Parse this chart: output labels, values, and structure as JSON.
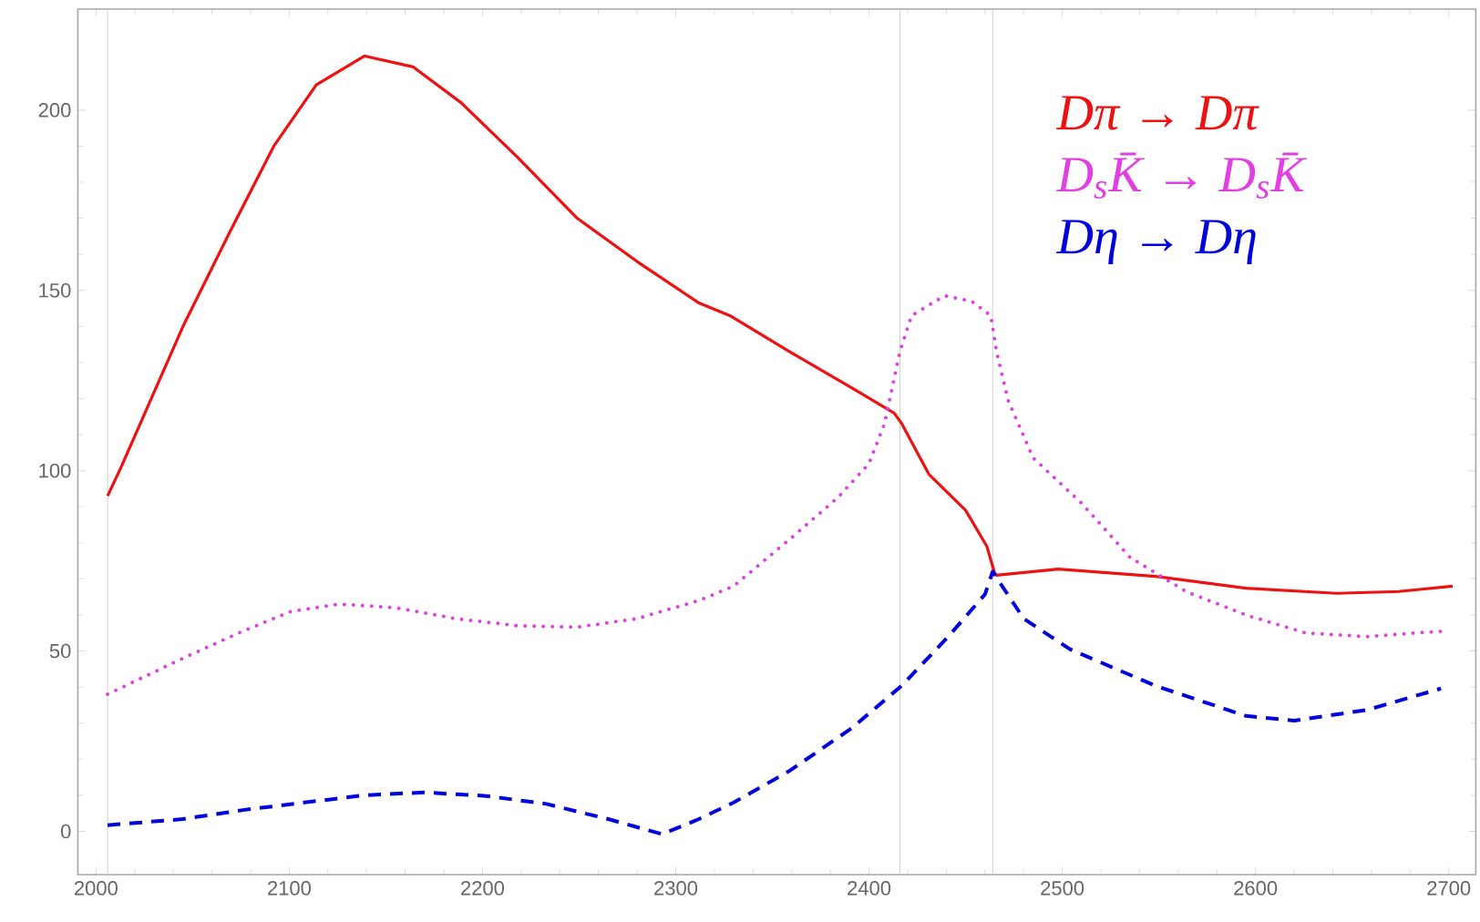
{
  "chart_data": {
    "type": "line",
    "xlim": [
      1990.6,
      2714
    ],
    "ylim": [
      -12,
      228
    ],
    "xticks": [
      2000,
      2100,
      2200,
      2300,
      2400,
      2500,
      2600,
      2700
    ],
    "yticks": [
      0,
      50,
      100,
      150,
      200
    ],
    "legend": "top right",
    "ref_lines": [
      {
        "axis": "x",
        "value": 2006,
        "color": "#d0d0d0"
      },
      {
        "axis": "x",
        "value": 2416,
        "color": "#d0d0d0"
      },
      {
        "axis": "x",
        "value": 2464,
        "color": "#d0d0d0"
      }
    ],
    "series": [
      {
        "name": "Dπ → Dπ",
        "color": "#ee1111",
        "line_style": "solid",
        "x": [
          2006,
          2013,
          2045,
          2070,
          2092,
          2114,
          2139,
          2164,
          2189,
          2218,
          2249,
          2280,
          2312,
          2328,
          2359,
          2391,
          2413,
          2417,
          2431,
          2450,
          2461,
          2465,
          2466,
          2498,
          2548,
          2595,
          2642,
          2674,
          2702
        ],
        "values": [
          93,
          101,
          140,
          167,
          190,
          207,
          215,
          212,
          202,
          187,
          170,
          158,
          146.5,
          143,
          133,
          123,
          116,
          113,
          99,
          89,
          79,
          71.6,
          71,
          72.7,
          70.7,
          67.4,
          66,
          66.5,
          68
        ]
      },
      {
        "name": "D$_{s}$K̄ → D$_{s}$K̄",
        "color": "#e040e0",
        "line_style": "dotted",
        "x": [
          2006,
          2045,
          2076,
          2101,
          2126,
          2155,
          2186,
          2218,
          2249,
          2280,
          2312,
          2330,
          2359,
          2384,
          2400,
          2408,
          2416,
          2422,
          2439,
          2453,
          2463,
          2466,
          2472,
          2485,
          2510,
          2535,
          2564,
          2595,
          2626,
          2658,
          2699
        ],
        "values": [
          38,
          48,
          55.5,
          61,
          63,
          62,
          59,
          57,
          56.6,
          59,
          64,
          68,
          81,
          92.6,
          102,
          113,
          133,
          143,
          148.5,
          147,
          143,
          133,
          119.5,
          103.5,
          91,
          76,
          66.5,
          60,
          55,
          54,
          55.6
        ]
      },
      {
        "name": "Dη → Dη",
        "color": "#0000dd",
        "line_style": "dashed",
        "x": [
          2006,
          2045,
          2076,
          2108,
          2139,
          2170,
          2202,
          2233,
          2265,
          2293,
          2312,
          2330,
          2359,
          2391,
          2417,
          2441,
          2460,
          2464,
          2480,
          2504,
          2548,
          2595,
          2620,
          2658,
          2696
        ],
        "values": [
          1.7,
          3.4,
          5.9,
          8,
          10,
          10.8,
          9.8,
          7.6,
          3.4,
          -0.8,
          3.4,
          8,
          16.8,
          28.6,
          40.4,
          54,
          65.7,
          72,
          59,
          50.5,
          40.4,
          32,
          30.7,
          33.7,
          39.6
        ]
      }
    ]
  }
}
